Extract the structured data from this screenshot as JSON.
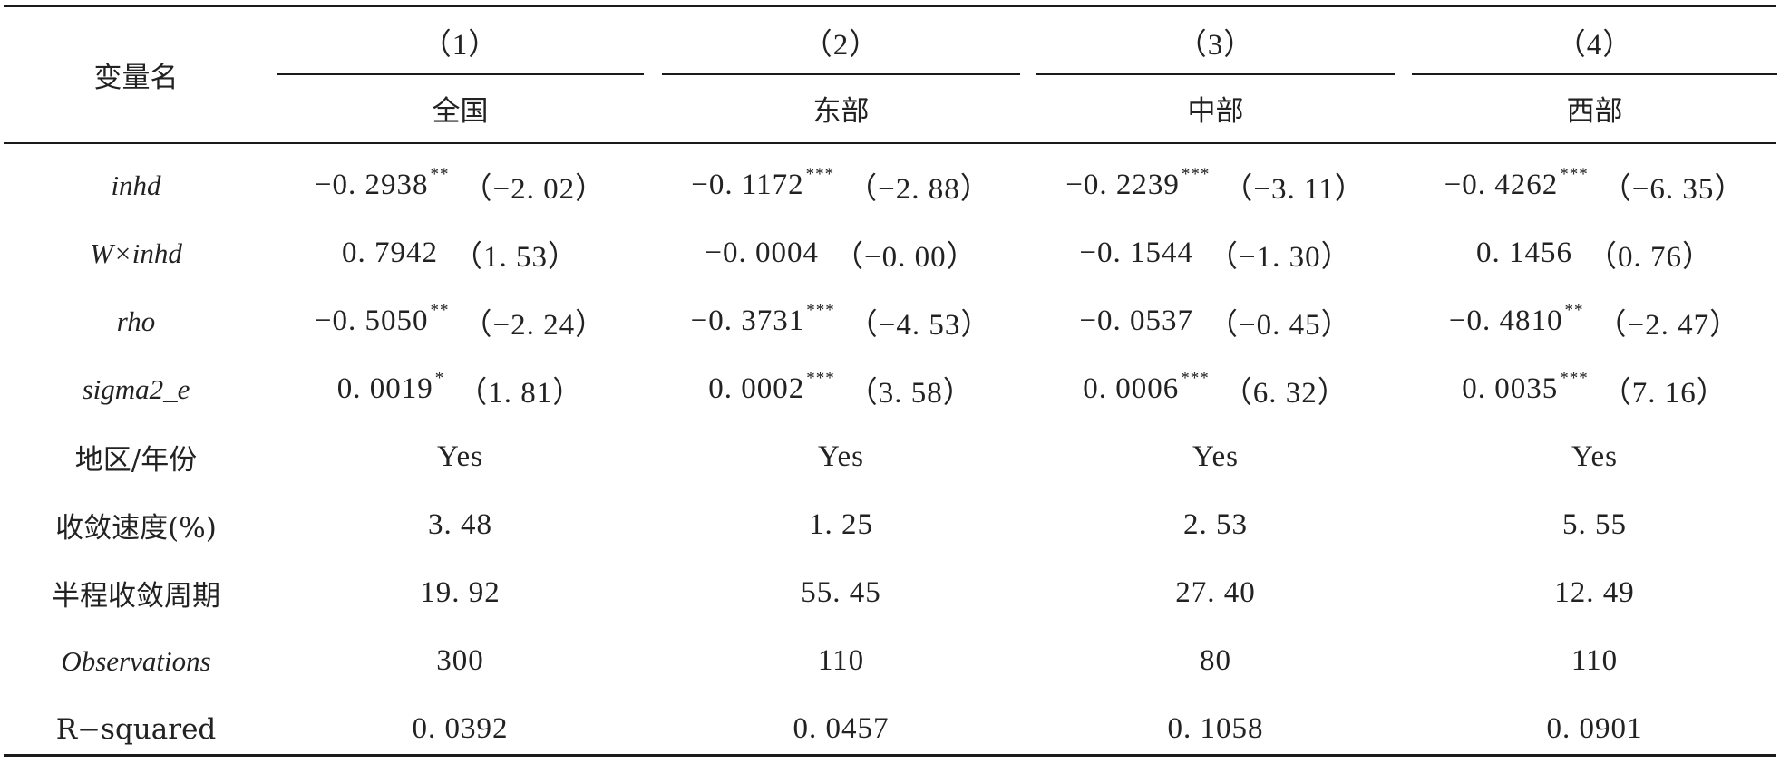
{
  "table": {
    "header": {
      "var_label": "变量名",
      "model_numbers": [
        "（1）",
        "（2）",
        "（3）",
        "（4）"
      ],
      "regions": [
        "全国",
        "东部",
        "中部",
        "西部"
      ]
    },
    "rows": [
      {
        "label": "inhd",
        "italic": true,
        "cells": [
          {
            "coef": "−0. 2938",
            "stars": "**",
            "t": "（−2. 02）"
          },
          {
            "coef": "−0. 1172",
            "stars": "***",
            "t": "（−2. 88）"
          },
          {
            "coef": "−0. 2239",
            "stars": "***",
            "t": "（−3. 11）"
          },
          {
            "coef": "−0. 4262",
            "stars": "***",
            "t": "（−6. 35）"
          }
        ]
      },
      {
        "label": "W×inhd",
        "italic": true,
        "cells": [
          {
            "coef": "0. 7942",
            "stars": "",
            "t": "（1. 53）"
          },
          {
            "coef": "−0. 0004",
            "stars": "",
            "t": "（−0. 00）"
          },
          {
            "coef": "−0. 1544",
            "stars": "",
            "t": "（−1. 30）"
          },
          {
            "coef": "0. 1456",
            "stars": "",
            "t": "（0. 76）"
          }
        ]
      },
      {
        "label": "rho",
        "italic": true,
        "cells": [
          {
            "coef": "−0. 5050",
            "stars": "**",
            "t": "（−2. 24）"
          },
          {
            "coef": "−0. 3731",
            "stars": "***",
            "t": "（−4. 53）"
          },
          {
            "coef": "−0. 0537",
            "stars": "",
            "t": "（−0. 45）"
          },
          {
            "coef": "−0. 4810",
            "stars": "**",
            "t": "（−2. 47）"
          }
        ]
      },
      {
        "label": "sigma2_e",
        "italic": true,
        "cells": [
          {
            "coef": "0. 0019",
            "stars": "*",
            "t": "（1. 81）"
          },
          {
            "coef": "0. 0002",
            "stars": "***",
            "t": "（3. 58）"
          },
          {
            "coef": "0. 0006",
            "stars": "***",
            "t": "（6. 32）"
          },
          {
            "coef": "0. 0035",
            "stars": "***",
            "t": "（7. 16）"
          }
        ]
      },
      {
        "label": "地区/年份",
        "italic": false,
        "cells": [
          {
            "text": "Yes"
          },
          {
            "text": "Yes"
          },
          {
            "text": "Yes"
          },
          {
            "text": "Yes"
          }
        ]
      },
      {
        "label": "收敛速度(%)",
        "italic": false,
        "cells": [
          {
            "text": "3. 48"
          },
          {
            "text": "1. 25"
          },
          {
            "text": "2. 53"
          },
          {
            "text": "5. 55"
          }
        ]
      },
      {
        "label": "半程收敛周期",
        "italic": false,
        "cells": [
          {
            "text": "19. 92"
          },
          {
            "text": "55. 45"
          },
          {
            "text": "27. 40"
          },
          {
            "text": "12. 49"
          }
        ]
      },
      {
        "label": "Observations",
        "italic": true,
        "cells": [
          {
            "text": "300"
          },
          {
            "text": "110"
          },
          {
            "text": "80"
          },
          {
            "text": "110"
          }
        ]
      },
      {
        "label": "R−squared",
        "italic": false,
        "cells": [
          {
            "text": "0. 0392"
          },
          {
            "text": "0. 0457"
          },
          {
            "text": "0. 1058"
          },
          {
            "text": "0. 0901"
          }
        ]
      }
    ]
  }
}
